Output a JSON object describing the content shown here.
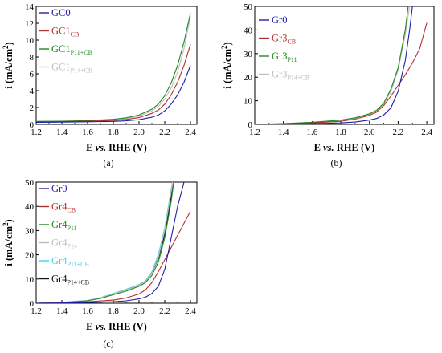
{
  "chart_data": [
    {
      "type": "line",
      "panel_label": "(a)",
      "xlabel_pre": "E ",
      "xlabel_italic": "vs.",
      "xlabel_post": " RHE (V)",
      "ylabel_main": "i (mA/cm",
      "ylabel_sup": "2",
      "ylabel_close": ")",
      "xlim": [
        1.2,
        2.45
      ],
      "ylim": [
        0,
        14
      ],
      "xticks": [
        "1.2",
        "1.4",
        "1.6",
        "1.8",
        "2.0",
        "2.2",
        "2.4"
      ],
      "yticks": [
        "0",
        "2",
        "4",
        "6",
        "8",
        "10",
        "12",
        "14"
      ],
      "legend_position": "top-left",
      "series": [
        {
          "name": "GC0",
          "sub": "",
          "color": "#1f1fa8",
          "x": [
            1.2,
            1.4,
            1.6,
            1.8,
            1.9,
            2.0,
            2.1,
            2.15,
            2.2,
            2.25,
            2.3,
            2.35,
            2.4
          ],
          "y": [
            0.25,
            0.27,
            0.3,
            0.35,
            0.42,
            0.55,
            0.85,
            1.1,
            1.6,
            2.4,
            3.5,
            5.0,
            7.0
          ]
        },
        {
          "name": "GC1",
          "sub": "CB",
          "color": "#b03030",
          "x": [
            1.2,
            1.4,
            1.6,
            1.8,
            1.9,
            2.0,
            2.1,
            2.15,
            2.2,
            2.25,
            2.3,
            2.35,
            2.4
          ],
          "y": [
            0.3,
            0.32,
            0.37,
            0.47,
            0.58,
            0.8,
            1.3,
            1.7,
            2.4,
            3.5,
            5.0,
            7.0,
            9.5
          ]
        },
        {
          "name": "GC1",
          "sub": "P11+CB",
          "color": "#1e8a1e",
          "x": [
            1.2,
            1.4,
            1.6,
            1.8,
            1.9,
            2.0,
            2.1,
            2.15,
            2.2,
            2.25,
            2.3,
            2.35,
            2.4
          ],
          "y": [
            0.35,
            0.38,
            0.45,
            0.6,
            0.78,
            1.1,
            1.8,
            2.4,
            3.4,
            4.9,
            7.0,
            9.8,
            13.2
          ]
        },
        {
          "name": "GC1",
          "sub": "P14+CB",
          "color": "#bdbdbd",
          "x": [
            1.2,
            1.4,
            1.6,
            1.8,
            1.9,
            2.0,
            2.1,
            2.15,
            2.2,
            2.25,
            2.3,
            2.35,
            2.4
          ],
          "y": [
            0.32,
            0.35,
            0.42,
            0.55,
            0.7,
            0.98,
            1.6,
            2.1,
            3.0,
            4.3,
            6.2,
            9.0,
            12.8
          ]
        }
      ]
    },
    {
      "type": "line",
      "panel_label": "(b)",
      "xlabel_pre": "E ",
      "xlabel_italic": "vs.",
      "xlabel_post": " RHE (V)",
      "ylabel_main": "i (mA/cm",
      "ylabel_sup": "2",
      "ylabel_close": ")",
      "xlim": [
        1.2,
        2.45
      ],
      "ylim": [
        0,
        50
      ],
      "xticks": [
        "1.2",
        "1.4",
        "1.6",
        "1.8",
        "2.0",
        "2.2",
        "2.4"
      ],
      "yticks": [
        "0",
        "10",
        "20",
        "30",
        "40",
        "50"
      ],
      "legend_position": "top-left",
      "series": [
        {
          "name": "Gr0",
          "sub": "",
          "color": "#1f1fa8",
          "x": [
            1.2,
            1.4,
            1.6,
            1.8,
            1.9,
            2.0,
            2.05,
            2.1,
            2.15,
            2.2,
            2.25,
            2.28,
            2.3
          ],
          "y": [
            0,
            0.1,
            0.3,
            0.6,
            1.0,
            1.8,
            2.5,
            4.0,
            7.0,
            14.0,
            27.0,
            40.0,
            50.0
          ]
        },
        {
          "name": "Gr3",
          "sub": "CB",
          "color": "#b03030",
          "x": [
            1.2,
            1.4,
            1.6,
            1.8,
            1.9,
            2.0,
            2.05,
            2.1,
            2.15,
            2.2,
            2.25,
            2.3,
            2.35,
            2.4
          ],
          "y": [
            0,
            0.2,
            0.6,
            1.3,
            2.2,
            3.8,
            5.2,
            8.0,
            12.0,
            16.5,
            21.0,
            26.0,
            32.0,
            43.0
          ]
        },
        {
          "name": "Gr3",
          "sub": "P11",
          "color": "#1e8a1e",
          "x": [
            1.2,
            1.4,
            1.6,
            1.8,
            1.9,
            2.0,
            2.05,
            2.1,
            2.15,
            2.2,
            2.25,
            2.27
          ],
          "y": [
            0,
            0.3,
            0.9,
            1.8,
            2.8,
            4.5,
            6.0,
            9.0,
            15.0,
            24.0,
            40.0,
            50.0
          ]
        },
        {
          "name": "Gr3",
          "sub": "P14+CB",
          "color": "#bdbdbd",
          "x": [
            1.2,
            1.4,
            1.6,
            1.8,
            1.9,
            2.0,
            2.05,
            2.1,
            2.15,
            2.2,
            2.25,
            2.28
          ],
          "y": [
            0,
            0.3,
            0.85,
            1.7,
            2.6,
            4.2,
            5.7,
            8.5,
            14.0,
            23.0,
            38.0,
            50.0
          ]
        }
      ]
    },
    {
      "type": "line",
      "panel_label": "(c)",
      "xlabel_pre": "E ",
      "xlabel_italic": "vs.",
      "xlabel_post": " RHE (V)",
      "ylabel_main": "i (mA/cm",
      "ylabel_sup": "2",
      "ylabel_close": ")",
      "xlim": [
        1.2,
        2.45
      ],
      "ylim": [
        0,
        50
      ],
      "xticks": [
        "1.2",
        "1.4",
        "1.6",
        "1.8",
        "2.0",
        "2.2",
        "2.4"
      ],
      "yticks": [
        "0",
        "10",
        "20",
        "30",
        "40",
        "50"
      ],
      "legend_position": "top-left",
      "series": [
        {
          "name": "Gr0",
          "sub": "",
          "color": "#1f1fa8",
          "x": [
            1.2,
            1.4,
            1.6,
            1.8,
            1.9,
            2.0,
            2.05,
            2.1,
            2.15,
            2.2,
            2.25,
            2.3,
            2.35
          ],
          "y": [
            0,
            0.1,
            0.3,
            0.6,
            1.0,
            1.8,
            2.5,
            4.0,
            7.0,
            14.0,
            27.0,
            40.0,
            50.0
          ]
        },
        {
          "name": "Gr4",
          "sub": "CB",
          "color": "#b03030",
          "x": [
            1.2,
            1.4,
            1.6,
            1.8,
            1.9,
            2.0,
            2.05,
            2.1,
            2.15,
            2.2,
            2.25,
            2.3,
            2.35,
            2.4
          ],
          "y": [
            0,
            0.2,
            0.6,
            1.3,
            2.2,
            3.8,
            5.5,
            8.5,
            13.0,
            18.0,
            23.0,
            28.0,
            33.0,
            38.0
          ]
        },
        {
          "name": "Gr4",
          "sub": "P11",
          "color": "#1e8a1e",
          "x": [
            1.2,
            1.4,
            1.6,
            1.7,
            1.8,
            1.9,
            1.95,
            2.0,
            2.05,
            2.1,
            2.15,
            2.2,
            2.25,
            2.27
          ],
          "y": [
            0,
            0.3,
            1.0,
            2.0,
            3.5,
            5.0,
            6.0,
            7.0,
            8.5,
            11.5,
            17.0,
            27.0,
            42.0,
            50.0
          ]
        },
        {
          "name": "Gr4",
          "sub": "P14",
          "color": "#bdbdbd",
          "x": [
            1.2,
            1.4,
            1.6,
            1.7,
            1.8,
            1.9,
            1.95,
            2.0,
            2.05,
            2.1,
            2.15,
            2.2,
            2.25,
            2.26
          ],
          "y": [
            0,
            0.3,
            1.1,
            2.2,
            3.8,
            5.5,
            6.4,
            7.4,
            9.0,
            12.5,
            19.0,
            30.0,
            46.0,
            50.0
          ]
        },
        {
          "name": "Gr4",
          "sub": "P11+CB",
          "color": "#3fd0ee",
          "x": [
            1.2,
            1.4,
            1.6,
            1.7,
            1.8,
            1.9,
            1.95,
            2.0,
            2.05,
            2.1,
            2.15,
            2.2,
            2.25,
            2.26
          ],
          "y": [
            0,
            0.35,
            1.2,
            2.3,
            4.0,
            5.8,
            6.7,
            7.7,
            9.3,
            13.0,
            20.0,
            31.0,
            47.0,
            50.0
          ]
        },
        {
          "name": "Gr4",
          "sub": "P14+CB",
          "color": "#111111",
          "x": [
            1.2,
            1.4,
            1.6,
            1.7,
            1.8,
            1.9,
            1.95,
            2.0,
            2.05,
            2.1,
            2.15,
            2.2,
            2.25,
            2.27
          ],
          "y": [
            0,
            0.32,
            1.1,
            2.2,
            3.9,
            5.6,
            6.5,
            7.5,
            9.1,
            12.5,
            18.5,
            28.5,
            44.0,
            50.0
          ]
        }
      ]
    }
  ]
}
